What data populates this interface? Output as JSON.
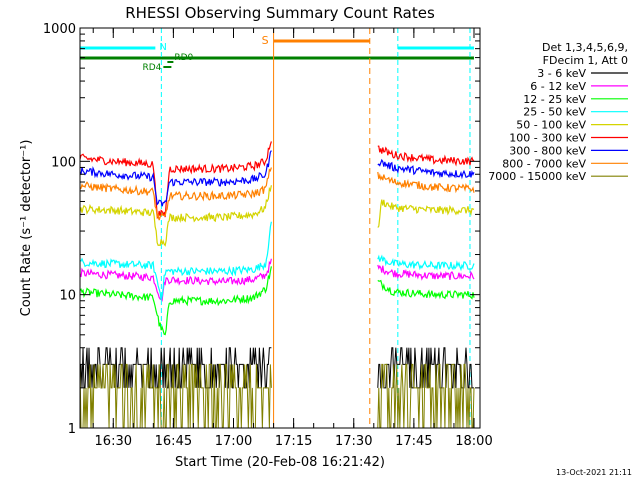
{
  "chart_data": {
    "type": "line",
    "title": "RHESSI Observing Summary Count Rates",
    "xlabel": "Start Time (20-Feb-08 16:21:42)",
    "ylabel": "Count Rate (s⁻¹ detector⁻¹)",
    "y_scale": "log",
    "ylim": [
      1,
      1000
    ],
    "xlim": [
      "16:21:42",
      "18:01:30"
    ],
    "x_ticks": [
      "16:30",
      "16:45",
      "17:00",
      "17:15",
      "17:30",
      "17:45",
      "18:00"
    ],
    "y_ticks": [
      "1",
      "10",
      "100",
      "1000"
    ],
    "footer": "13-Oct-2021 21:11",
    "legend": {
      "placement": "top-right",
      "header": [
        "Det 1,3,4,5,6,9,",
        "FDecim 1, Att 0"
      ]
    },
    "series": [
      {
        "name": "3 - 6 keV",
        "color": "#000000",
        "segments": [
          {
            "x": [
              "16:21:42",
              "16:40:00",
              "16:42:00",
              "16:58:00",
              "17:08:00",
              "17:09:30"
            ],
            "y": [
              3.0,
              3.0,
              2.6,
              2.7,
              2.8,
              6.0
            ]
          },
          {
            "x": [
              "17:36:00",
              "17:40:00",
              "17:50:00",
              "18:00:00"
            ],
            "y": [
              3.3,
              3.0,
              2.9,
              3.0
            ]
          }
        ]
      },
      {
        "name": "6 - 12 keV",
        "color": "#ff00ff",
        "segments": [
          {
            "x": [
              "16:21:42",
              "16:30:00",
              "16:40:00",
              "16:42:00",
              "16:43:00",
              "16:58:00",
              "17:05:00",
              "17:08:00",
              "17:09:30"
            ],
            "y": [
              14.5,
              14.0,
              13.5,
              9.0,
              13.0,
              12.5,
              13.0,
              14.0,
              18.0
            ]
          },
          {
            "x": [
              "17:36:00",
              "17:40:00",
              "17:50:00",
              "18:00:00"
            ],
            "y": [
              16.0,
              14.5,
              13.8,
              13.8
            ]
          }
        ]
      },
      {
        "name": "12 - 25 keV",
        "color": "#00ff00",
        "segments": [
          {
            "x": [
              "16:21:42",
              "16:30:00",
              "16:40:00",
              "16:41:30",
              "16:43:00",
              "16:44:00",
              "16:58:00",
              "17:05:00",
              "17:08:00",
              "17:09:30"
            ],
            "y": [
              10.5,
              10.0,
              9.5,
              6.0,
              4.8,
              9.0,
              9.0,
              9.5,
              11.0,
              16.0
            ]
          },
          {
            "x": [
              "17:36:00",
              "17:40:00",
              "17:50:00",
              "18:00:00"
            ],
            "y": [
              12.5,
              10.5,
              10.0,
              10.0
            ]
          }
        ]
      },
      {
        "name": "25 - 50 keV",
        "color": "#00ffff",
        "segments": [
          {
            "x": [
              "16:21:42",
              "16:30:00",
              "16:40:00",
              "16:42:00",
              "16:43:00",
              "16:58:00",
              "17:05:00",
              "17:08:00",
              "17:09:30"
            ],
            "y": [
              17.5,
              17.0,
              16.5,
              9.5,
              15.0,
              15.0,
              15.5,
              17.0,
              35.0
            ]
          },
          {
            "x": [
              "17:36:00",
              "17:40:00",
              "17:50:00",
              "18:00:00"
            ],
            "y": [
              19.0,
              17.0,
              16.5,
              16.5
            ]
          }
        ]
      },
      {
        "name": "50 - 100 keV",
        "color": "#d4d400",
        "segments": [
          {
            "x": [
              "16:21:42",
              "16:30:00",
              "16:40:00",
              "16:41:00",
              "16:43:00",
              "16:44:00",
              "16:58:00",
              "17:05:00",
              "17:08:00",
              "17:09:30"
            ],
            "y": [
              44.0,
              43.0,
              41.0,
              25.0,
              25.0,
              38.0,
              38.0,
              40.0,
              45.0,
              70.0
            ]
          },
          {
            "x": [
              "17:36:00",
              "17:37:00",
              "17:40:00",
              "17:50:00",
              "18:00:00"
            ],
            "y": [
              30.0,
              50.0,
              45.0,
              43.0,
              43.0
            ]
          }
        ]
      },
      {
        "name": "100 - 300 keV",
        "color": "#ff0000",
        "segments": [
          {
            "x": [
              "16:21:42",
              "16:30:00",
              "16:40:00",
              "16:41:00",
              "16:43:00",
              "16:44:00",
              "16:58:00",
              "17:05:00",
              "17:08:00",
              "17:09:30"
            ],
            "y": [
              106.0,
              100.0,
              95.0,
              40.0,
              40.0,
              88.0,
              88.0,
              92.0,
              100.0,
              150.0
            ]
          },
          {
            "x": [
              "17:36:00",
              "17:40:00",
              "17:50:00",
              "18:00:00"
            ],
            "y": [
              125.0,
              112.0,
              102.0,
              100.0
            ]
          }
        ]
      },
      {
        "name": "300 - 800 keV",
        "color": "#0000ff",
        "segments": [
          {
            "x": [
              "16:21:42",
              "16:30:00",
              "16:40:00",
              "16:41:00",
              "16:43:00",
              "16:44:00",
              "16:58:00",
              "17:05:00",
              "17:08:00",
              "17:09:30"
            ],
            "y": [
              85.0,
              80.0,
              76.0,
              48.0,
              48.0,
              70.0,
              70.0,
              73.0,
              80.0,
              120.0
            ]
          },
          {
            "x": [
              "17:36:00",
              "17:40:00",
              "17:50:00",
              "18:00:00"
            ],
            "y": [
              100.0,
              90.0,
              82.0,
              80.0
            ]
          }
        ]
      },
      {
        "name": "800 - 7000 keV",
        "color": "#ff8000",
        "segments": [
          {
            "x": [
              "16:21:42",
              "16:30:00",
              "16:40:00",
              "16:41:00",
              "16:43:00",
              "16:44:00",
              "16:58:00",
              "17:05:00",
              "17:08:00",
              "17:09:30"
            ],
            "y": [
              66.0,
              62.0,
              59.0,
              38.0,
              38.0,
              55.0,
              55.0,
              57.0,
              62.0,
              95.0
            ]
          },
          {
            "x": [
              "17:36:00",
              "17:40:00",
              "17:50:00",
              "18:00:00"
            ],
            "y": [
              78.0,
              70.0,
              64.0,
              62.0
            ]
          }
        ]
      },
      {
        "name": "7000 - 15000 keV",
        "color": "#808000",
        "segments": [
          {
            "x": [
              "16:21:42",
              "16:40:00",
              "16:42:00",
              "16:58:00",
              "17:08:00",
              "17:09:30"
            ],
            "y": [
              2.2,
              2.2,
              1.9,
              2.0,
              2.0,
              2.5
            ]
          },
          {
            "x": [
              "17:36:00",
              "17:40:00",
              "17:50:00",
              "18:00:00"
            ],
            "y": [
              2.3,
              2.2,
              2.1,
              2.1
            ]
          }
        ]
      }
    ],
    "annotations": {
      "night": {
        "label": "N",
        "color": "#00ffff",
        "lines": [
          "16:21:42",
          "16:42:00",
          "17:41:00",
          "17:59:00"
        ],
        "bars": [
          [
            "16:21:42",
            "16:40:30"
          ],
          [
            "17:41:00",
            "18:00:00"
          ]
        ]
      },
      "saa": {
        "label": "S",
        "color": "#ff8000",
        "lines": [
          "17:10:00",
          "17:34:00"
        ],
        "bar": [
          "17:10:00",
          "17:34:00"
        ]
      },
      "green_bar": {
        "color": "#008000",
        "range": [
          "16:21:42",
          "18:00:00"
        ]
      },
      "rd0": {
        "label": "RD0",
        "color": "#008000",
        "range": [
          "16:43:30",
          "16:45:00"
        ]
      },
      "rd4": {
        "label": "RD4",
        "color": "#008000",
        "range": [
          "16:42:30",
          "16:44:30"
        ]
      }
    }
  }
}
